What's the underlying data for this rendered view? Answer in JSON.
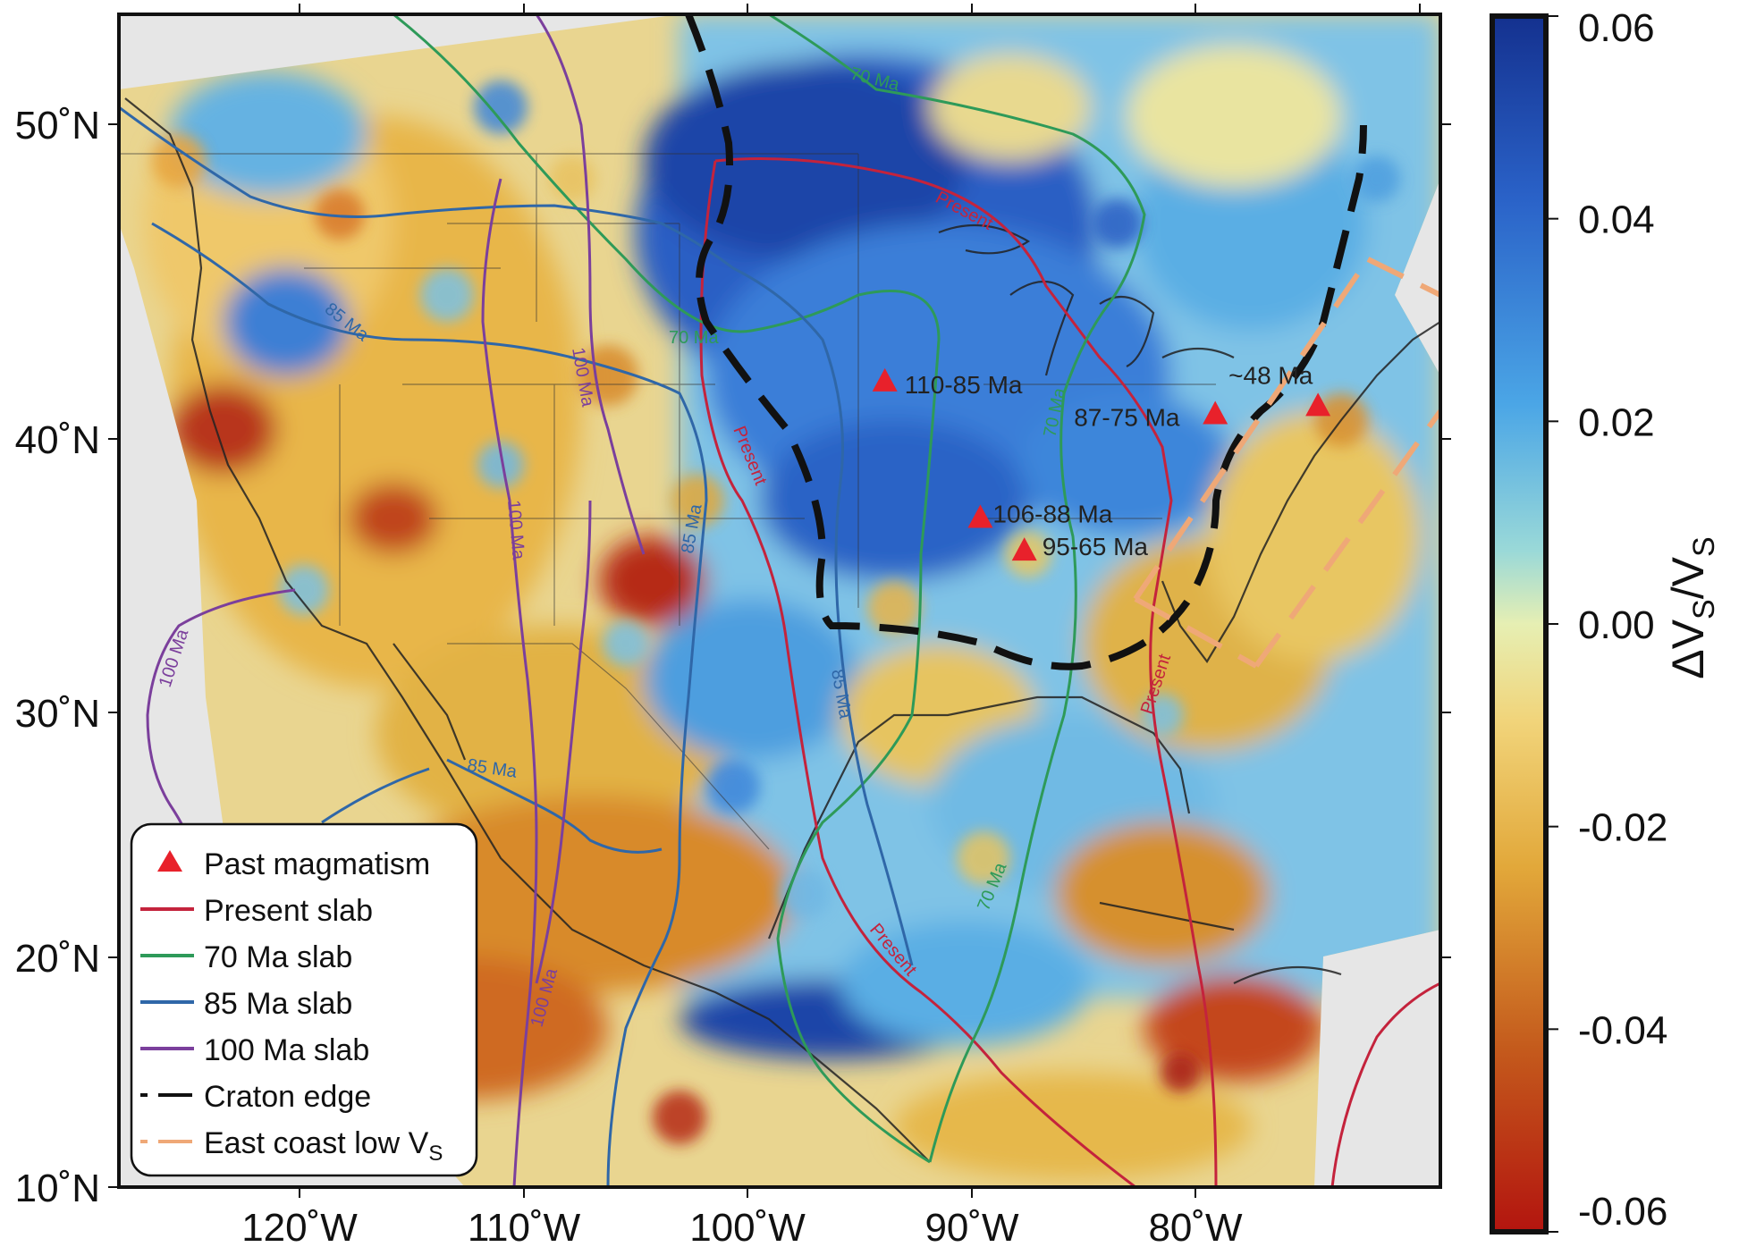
{
  "map": {
    "lat_ticks": [
      "50˚N",
      "40˚N",
      "30˚N",
      "20˚N",
      "10˚N"
    ],
    "lon_ticks": [
      "120˚W",
      "110˚W",
      "100˚W",
      "90˚W",
      "80˚W"
    ],
    "lon_range_deg": [
      -128,
      -74
    ],
    "lat_range_deg": [
      10,
      53
    ]
  },
  "colorbar": {
    "title_main": "ΔV",
    "title_sub": "S",
    "title_div": "/V",
    "title_sub2": "S",
    "ticks": [
      "0.06",
      "0.04",
      "0.02",
      "0.00",
      "-0.02",
      "-0.04",
      "-0.06"
    ],
    "range": [
      -0.06,
      0.06
    ],
    "colors": {
      "high": "#1a3c9e",
      "mid_high": "#3b8ee0",
      "mid": "#d9ecb8",
      "mid_low": "#e3b23a",
      "low": "#b3150f"
    }
  },
  "line_labels": {
    "present": "Present",
    "ma70": "70 Ma",
    "ma85": "85 Ma",
    "ma100": "100 Ma"
  },
  "magmatism": [
    {
      "label": "110-85 Ma",
      "lon": -96.7,
      "lat": 39.5
    },
    {
      "label": "106-88 Ma",
      "lon": -92.8,
      "lat": 34.5
    },
    {
      "label": "95-65 Ma",
      "lon": -91.0,
      "lat": 33.3
    },
    {
      "label": "87-75 Ma",
      "lon": -83.2,
      "lat": 38.3
    },
    {
      "label": "~48 Ma",
      "lon": -79.0,
      "lat": 38.6
    }
  ],
  "legend": {
    "items": [
      {
        "label": "Past magmatism",
        "symbol": "triangle",
        "color": "#e8212b"
      },
      {
        "label": "Present slab",
        "symbol": "line",
        "color": "#c4233c"
      },
      {
        "label": "70 Ma slab",
        "symbol": "line",
        "color": "#2e9a59"
      },
      {
        "label": "85 Ma slab",
        "symbol": "line",
        "color": "#2f67a8"
      },
      {
        "label": "100 Ma slab",
        "symbol": "line",
        "color": "#7b3f9c"
      },
      {
        "label": "Craton edge",
        "symbol": "dash",
        "color": "#111111"
      },
      {
        "label": "East coast low V",
        "sub": "S",
        "symbol": "dash",
        "color": "#efa877"
      }
    ]
  }
}
